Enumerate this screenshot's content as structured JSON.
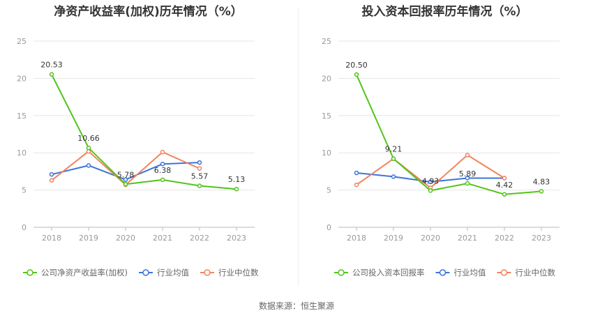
{
  "chart_data": [
    {
      "type": "line",
      "title": "净资产收益率(加权)历年情况（%）",
      "categories": [
        "2018",
        "2019",
        "2020",
        "2021",
        "2022",
        "2023"
      ],
      "ylim": [
        0,
        25
      ],
      "yticks": [
        0,
        5,
        10,
        15,
        20,
        25
      ],
      "grid": true,
      "legend_position": "bottom",
      "series": [
        {
          "name": "公司净资产收益率(加权)",
          "color": "#52c41a",
          "values": [
            20.53,
            10.66,
            5.78,
            6.38,
            5.57,
            5.13
          ],
          "labels": [
            "20.53",
            "10.66",
            "5.78",
            "6.38",
            "5.57",
            "5.13"
          ]
        },
        {
          "name": "行业均值",
          "color": "#3b74d9",
          "values": [
            7.1,
            8.3,
            6.4,
            8.5,
            8.7,
            null
          ]
        },
        {
          "name": "行业中位数",
          "color": "#f0845e",
          "values": [
            6.3,
            10.2,
            5.7,
            10.1,
            7.9,
            null
          ]
        }
      ]
    },
    {
      "type": "line",
      "title": "投入资本回报率历年情况（%）",
      "categories": [
        "2018",
        "2019",
        "2020",
        "2021",
        "2022",
        "2023"
      ],
      "ylim": [
        0,
        25
      ],
      "yticks": [
        0,
        5,
        10,
        15,
        20,
        25
      ],
      "grid": true,
      "legend_position": "bottom",
      "series": [
        {
          "name": "公司投入资本回报率",
          "color": "#52c41a",
          "values": [
            20.5,
            9.21,
            4.93,
            5.89,
            4.42,
            4.83
          ],
          "labels": [
            "20.50",
            "9.21",
            "4.93",
            "5.89",
            "4.42",
            "4.83"
          ]
        },
        {
          "name": "行业均值",
          "color": "#3b74d9",
          "values": [
            7.3,
            6.8,
            6.1,
            6.6,
            6.6,
            null
          ]
        },
        {
          "name": "行业中位数",
          "color": "#f0845e",
          "values": [
            5.7,
            9.2,
            5.3,
            9.7,
            6.6,
            null
          ]
        }
      ]
    }
  ],
  "footer": {
    "source": "数据来源：恒生聚源"
  }
}
